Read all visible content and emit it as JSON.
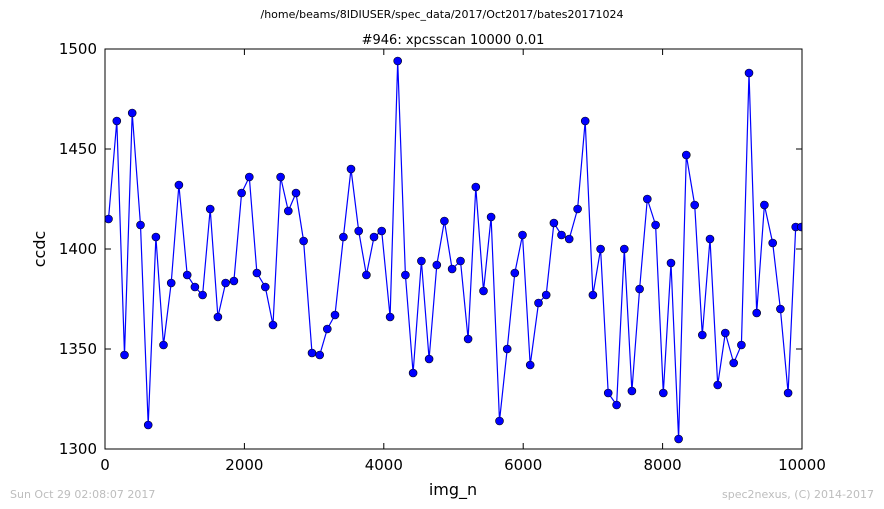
{
  "suptitle": "/home/beams/8IDIUSER/spec_data/2017/Oct2017/bates20171024",
  "footer": {
    "timestamp": "Sun Oct 29 02:08:07 2017",
    "credit": "spec2nexus, (C) 2014-2017"
  },
  "colors": {
    "series": "#0000ff",
    "axes": "#000000"
  },
  "chart_data": {
    "type": "line",
    "title": "#946: xpcsscan 10000 0.01",
    "xlabel": "img_n",
    "ylabel": "ccdc",
    "xlim": [
      0,
      10000
    ],
    "ylim": [
      1300,
      1500
    ],
    "xticks": [
      0,
      2000,
      4000,
      6000,
      8000,
      10000
    ],
    "yticks": [
      1300,
      1350,
      1400,
      1450,
      1500
    ],
    "grid": false,
    "series": [
      {
        "marker": "circle",
        "x": [
          50,
          170,
          280,
          390,
          510,
          620,
          730,
          840,
          950,
          1060,
          1180,
          1290,
          1400,
          1510,
          1620,
          1730,
          1850,
          1960,
          2070,
          2180,
          2300,
          2410,
          2520,
          2630,
          2740,
          2850,
          2970,
          3080,
          3190,
          3300,
          3420,
          3530,
          3640,
          3750,
          3860,
          3970,
          4090,
          4200,
          4310,
          4420,
          4540,
          4650,
          4760,
          4870,
          4980,
          5100,
          5210,
          5320,
          5430,
          5540,
          5660,
          5770,
          5880,
          5990,
          6100,
          6220,
          6330,
          6440,
          6550,
          6660,
          6780,
          6890,
          7000,
          7110,
          7220,
          7340,
          7450,
          7560,
          7670,
          7780,
          7900,
          8010,
          8120,
          8230,
          8340,
          8460,
          8570,
          8680,
          8790,
          8900,
          9020,
          9130,
          9240,
          9350,
          9460,
          9580,
          9690,
          9800,
          9910,
          9990
        ],
        "y": [
          1415,
          1464,
          1347,
          1468,
          1412,
          1312,
          1406,
          1352,
          1383,
          1432,
          1387,
          1381,
          1377,
          1420,
          1366,
          1383,
          1384,
          1428,
          1436,
          1388,
          1381,
          1362,
          1436,
          1419,
          1428,
          1404,
          1348,
          1347,
          1360,
          1367,
          1406,
          1440,
          1409,
          1387,
          1406,
          1409,
          1366,
          1494,
          1387,
          1338,
          1394,
          1345,
          1392,
          1414,
          1390,
          1394,
          1355,
          1431,
          1379,
          1416,
          1314,
          1350,
          1388,
          1407,
          1342,
          1373,
          1377,
          1413,
          1407,
          1405,
          1420,
          1464,
          1377,
          1400,
          1328,
          1322,
          1400,
          1329,
          1380,
          1425,
          1412,
          1328,
          1393,
          1305,
          1447,
          1422,
          1357,
          1405,
          1332,
          1358,
          1343,
          1352,
          1488,
          1368,
          1422,
          1403,
          1370,
          1328,
          1411,
          1411
        ]
      }
    ]
  }
}
